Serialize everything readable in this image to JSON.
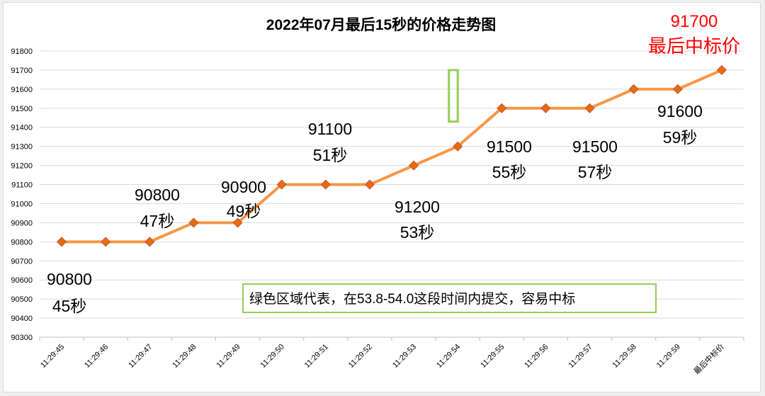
{
  "chart_data": {
    "type": "line",
    "title": "2022年07月最后15秒的价格走势图",
    "categories": [
      "11:29:45",
      "11:29:46",
      "11:29:47",
      "11:29:48",
      "11:29:49",
      "11:29:50",
      "11:29:51",
      "11:29:52",
      "11:29:53",
      "11:29:54",
      "11:29:55",
      "11:29:56",
      "11:29:57",
      "11:29:58",
      "11:29:59",
      "最后中标价"
    ],
    "values": [
      90800,
      90800,
      90800,
      90900,
      90900,
      91100,
      91100,
      91100,
      91200,
      91300,
      91500,
      91500,
      91500,
      91600,
      91600,
      91700
    ],
    "ylim": [
      90300,
      91800
    ],
    "ytick_step": 100,
    "yticks": [
      "90300",
      "90400",
      "90500",
      "90600",
      "90700",
      "90800",
      "90900",
      "91000",
      "91100",
      "91200",
      "91300",
      "91400",
      "91500",
      "91600",
      "91700",
      "91800"
    ],
    "grid": true,
    "legend": "none",
    "colors": {
      "line": "#f79646",
      "marker": "#e46c0a",
      "highlight": "#92d050",
      "final_label": "#ff0000",
      "grid": "#d9d9d9",
      "text": "#000000"
    },
    "annotations": [
      {
        "price": "90800",
        "second": "45秒"
      },
      {
        "price": "90800",
        "second": "47秒"
      },
      {
        "price": "90900",
        "second": "49秒"
      },
      {
        "price": "91100",
        "second": "51秒"
      },
      {
        "price": "91200",
        "second": "53秒"
      },
      {
        "price": "91500",
        "second": "55秒"
      },
      {
        "price": "91500",
        "second": "57秒"
      },
      {
        "price": "91600",
        "second": "59秒"
      }
    ],
    "final_label": {
      "price": "91700",
      "text": "最后中标价"
    },
    "highlight_window": {
      "from_x": 8.8,
      "to_x": 9.0,
      "from_y": 91430,
      "to_y": 91700
    },
    "note": "绿色区域代表，在53.8-54.0这段时间内提交，容易中标"
  }
}
